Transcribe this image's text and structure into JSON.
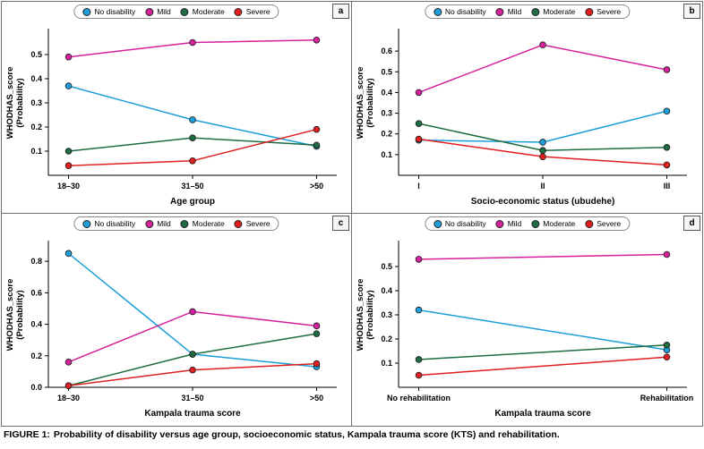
{
  "caption": {
    "prefix": "FIGURE 1:",
    "text": "Probability of disability versus age group, socioeconomic status, Kampala trauma score (KTS) and rehabilitation."
  },
  "colors": {
    "no_disability": "#1b9ed9",
    "mild": "#d6219c",
    "moderate": "#1e6b41",
    "severe": "#e02020",
    "axis": "#000000",
    "panel_border": "#6e6e6e"
  },
  "chart_data": [
    {
      "type": "line",
      "panel_label": "a",
      "categories": [
        "18–30",
        "31–50",
        ">50"
      ],
      "xlabel": "Age group",
      "ylabel": "WHODHAS_score\n(Probability)",
      "ylim": [
        0,
        0.6
      ],
      "yticks": [
        0.1,
        0.2,
        0.3,
        0.4,
        0.5
      ],
      "legend_position": "top",
      "grid": false,
      "series": [
        {
          "name": "No disability",
          "color": "#1b9ed9",
          "values": [
            0.37,
            0.23,
            0.12
          ]
        },
        {
          "name": "Mild",
          "color": "#d6219c",
          "values": [
            0.49,
            0.55,
            0.56
          ]
        },
        {
          "name": "Moderate",
          "color": "#1e6b41",
          "values": [
            0.1,
            0.155,
            0.125
          ]
        },
        {
          "name": "Severe",
          "color": "#e02020",
          "values": [
            0.04,
            0.06,
            0.19
          ]
        }
      ]
    },
    {
      "type": "line",
      "panel_label": "b",
      "categories": [
        "I",
        "II",
        "III"
      ],
      "xlabel": "Socio-economic status (ubudehe)",
      "ylabel": "WHODHAS_score\n(Probability)",
      "ylim": [
        0,
        0.7
      ],
      "yticks": [
        0.1,
        0.2,
        0.3,
        0.4,
        0.5,
        0.6
      ],
      "legend_position": "top",
      "grid": false,
      "series": [
        {
          "name": "No disability",
          "color": "#1b9ed9",
          "values": [
            0.17,
            0.16,
            0.31
          ]
        },
        {
          "name": "Mild",
          "color": "#d6219c",
          "values": [
            0.4,
            0.63,
            0.51
          ]
        },
        {
          "name": "Moderate",
          "color": "#1e6b41",
          "values": [
            0.25,
            0.12,
            0.135
          ]
        },
        {
          "name": "Severe",
          "color": "#e02020",
          "values": [
            0.175,
            0.09,
            0.05
          ]
        }
      ]
    },
    {
      "type": "line",
      "panel_label": "c",
      "categories": [
        "18–30",
        "31–50",
        ">50"
      ],
      "xlabel": "Kampala trauma score",
      "ylabel": "WHODHAS_score\n(Probability)",
      "ylim": [
        0,
        0.92
      ],
      "yticks": [
        0.0,
        0.2,
        0.4,
        0.6,
        0.8
      ],
      "legend_position": "top",
      "grid": false,
      "series": [
        {
          "name": "No disability",
          "color": "#1b9ed9",
          "values": [
            0.85,
            0.21,
            0.13
          ]
        },
        {
          "name": "Mild",
          "color": "#d6219c",
          "values": [
            0.16,
            0.48,
            0.39
          ]
        },
        {
          "name": "Moderate",
          "color": "#1e6b41",
          "values": [
            0.01,
            0.21,
            0.34
          ]
        },
        {
          "name": "Severe",
          "color": "#e02020",
          "values": [
            0.01,
            0.11,
            0.15
          ]
        }
      ]
    },
    {
      "type": "line",
      "panel_label": "d",
      "categories": [
        "No rehabilitation",
        "Rehabilitation"
      ],
      "xlabel": "Kampala trauma score",
      "ylabel": "WHODHAS_score\n(Probability)",
      "ylim": [
        0,
        0.6
      ],
      "yticks": [
        0.1,
        0.2,
        0.3,
        0.4,
        0.5
      ],
      "legend_position": "top",
      "grid": false,
      "series": [
        {
          "name": "No disability",
          "color": "#1b9ed9",
          "values": [
            0.32,
            0.155
          ]
        },
        {
          "name": "Mild",
          "color": "#d6219c",
          "values": [
            0.53,
            0.55
          ]
        },
        {
          "name": "Moderate",
          "color": "#1e6b41",
          "values": [
            0.115,
            0.175
          ]
        },
        {
          "name": "Severe",
          "color": "#e02020",
          "values": [
            0.05,
            0.125
          ]
        }
      ]
    }
  ]
}
